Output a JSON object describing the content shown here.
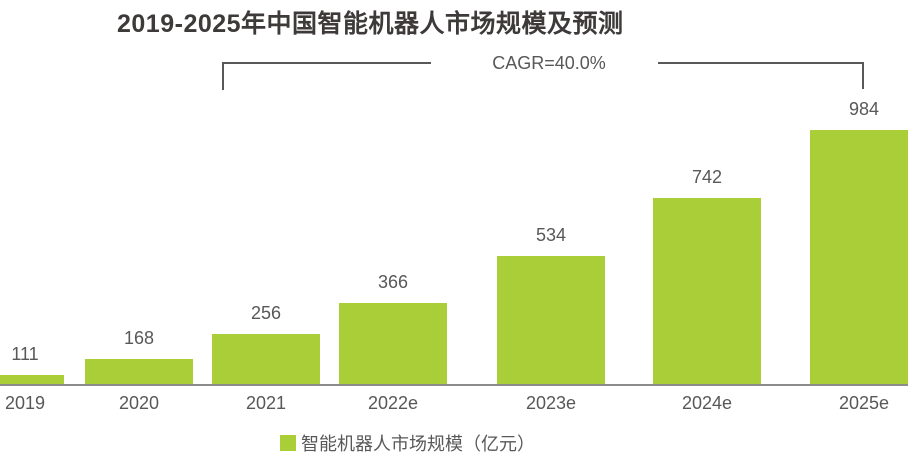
{
  "title": "2019-2025年中国智能机器人市场规模及预测",
  "annotation": {
    "cagr_label": "CAGR=40.0%"
  },
  "legend": {
    "label": "智能机器人市场规模（亿元）"
  },
  "chart_data": {
    "type": "bar",
    "title": "2019-2025年中国智能机器人市场规模及预测",
    "categories": [
      "2019",
      "2020",
      "2021",
      "2022e",
      "2023e",
      "2024e",
      "2025e"
    ],
    "values": [
      111,
      168,
      256,
      366,
      534,
      742,
      984
    ],
    "series_name": "智能机器人市场规模（亿元）",
    "unit": "亿元",
    "annotations": [
      "CAGR=40.0%"
    ],
    "annotation_span": [
      "2021",
      "2025e"
    ],
    "bar_color": "#a9ce38",
    "text_color": "#595757",
    "title_color": "#3d3a39",
    "axis_line_color": "#8c8c8c",
    "data_labels_shown": true,
    "gridlines": false,
    "y_axis_shown": false,
    "legend_position": "bottom"
  }
}
